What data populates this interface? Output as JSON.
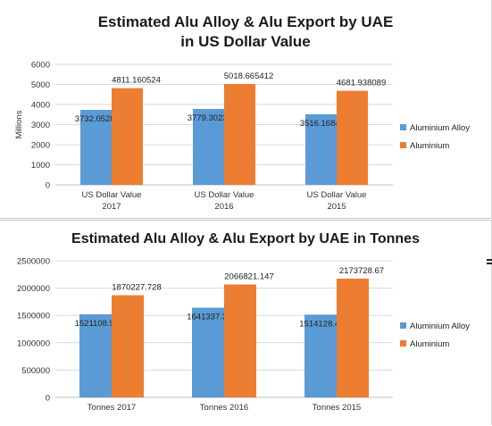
{
  "chart_data": [
    {
      "type": "bar",
      "title_lines": [
        "Estimated Alu Alloy & Alu Export by UAE",
        "in US Dollar Value"
      ],
      "ylabel": "Millions",
      "xlabel": "",
      "ylim": [
        0,
        6000
      ],
      "yticks": [
        "0",
        "1000",
        "2000",
        "3000",
        "4000",
        "5000",
        "6000"
      ],
      "grid": true,
      "legend": "right",
      "categories": [
        [
          "US Dollar Value",
          "2017"
        ],
        [
          "US Dollar Value",
          "2016"
        ],
        [
          "US Dollar Value",
          "2015"
        ]
      ],
      "series": [
        {
          "name": "Aluminium Alloy",
          "color": "#5b9bd5",
          "values": [
            3732.052886,
            3779.302342,
            3516.168491
          ],
          "labels": [
            "3732.052886",
            "3779.302342",
            "3516.168491"
          ]
        },
        {
          "name": "Aluminium",
          "color": "#ed7d31",
          "values": [
            4811.160524,
            5018.665412,
            4681.938089
          ],
          "labels": [
            "4811.160524",
            "5018.665412",
            "4681.938089"
          ]
        }
      ]
    },
    {
      "type": "bar",
      "title_lines": [
        "Estimated Alu Alloy & Alu Export by UAE  in Tonnes"
      ],
      "ylabel": "",
      "xlabel": "",
      "ylim": [
        0,
        2500000
      ],
      "yticks": [
        "0",
        "500000",
        "1000000",
        "1500000",
        "2000000",
        "2500000"
      ],
      "grid": true,
      "legend": "right",
      "categories": [
        [
          "Tonnes 2017"
        ],
        [
          "Tonnes 2016"
        ],
        [
          "Tonnes 2015"
        ]
      ],
      "series": [
        {
          "name": "Aluminium Alloy",
          "color": "#5b9bd5",
          "values": [
            1521108.919,
            1641337.396,
            1514128.445
          ],
          "labels": [
            "1521108.919",
            "1641337.396",
            "1514128.445"
          ]
        },
        {
          "name": "Aluminium",
          "color": "#ed7d31",
          "values": [
            1870227.728,
            2066821.147,
            2173728.67
          ],
          "labels": [
            "1870227.728",
            "2066821.147",
            "2173728.67"
          ]
        }
      ]
    }
  ]
}
